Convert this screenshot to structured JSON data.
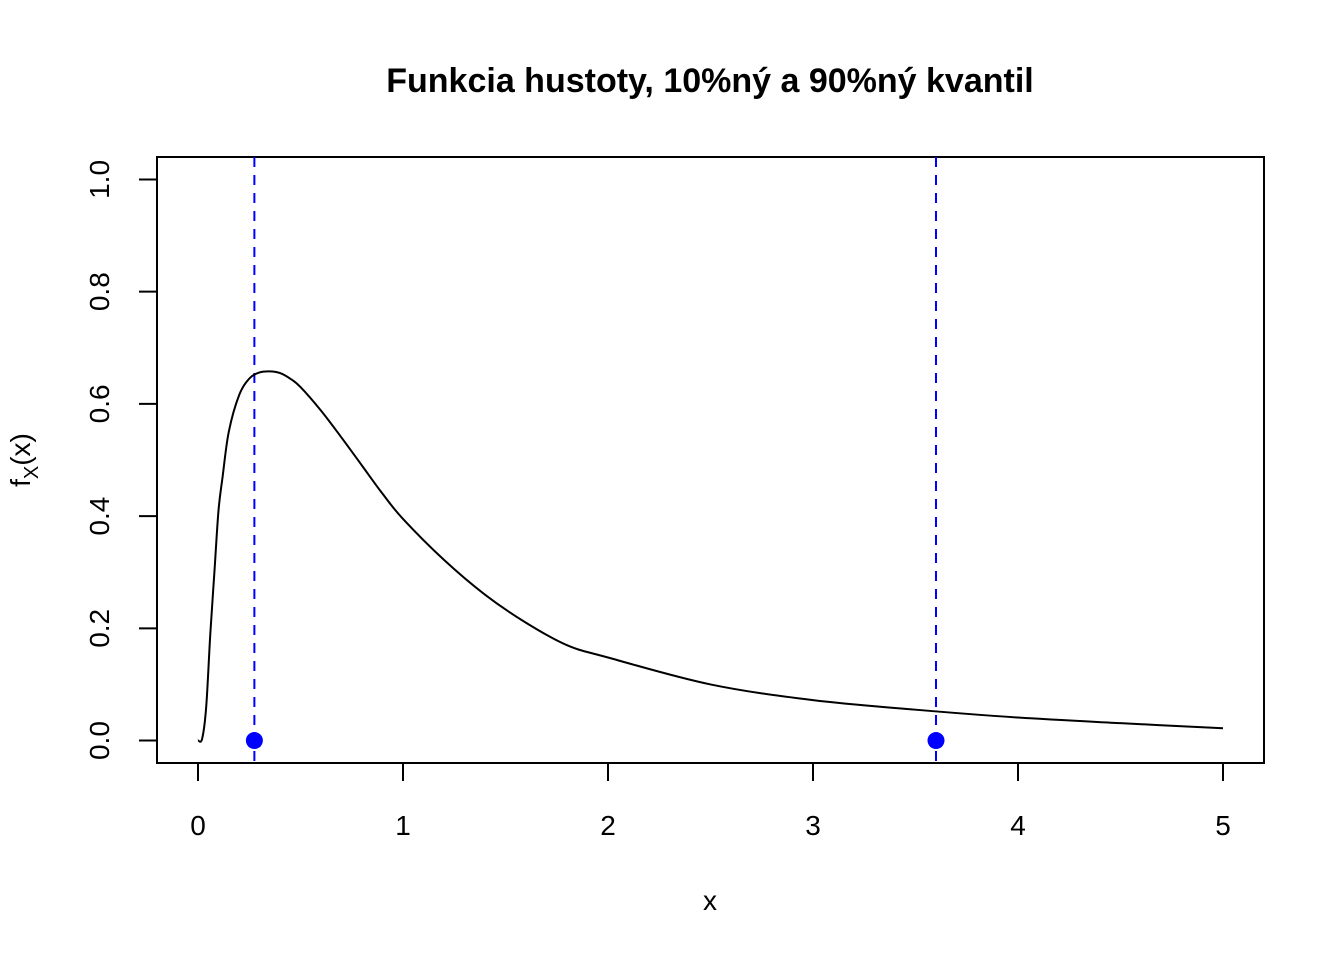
{
  "chart_data": {
    "type": "line",
    "title": "Funkcia hustoty, 10%ný a 90%ný kvantil",
    "xlabel": "x",
    "ylabel_main": "f",
    "ylabel_sub": "X",
    "ylabel_arg": "(x)",
    "xlim": [
      -0.2,
      5.2
    ],
    "ylim": [
      -0.04,
      1.04
    ],
    "xticks": [
      0,
      1,
      2,
      3,
      4,
      5
    ],
    "yticks": [
      0.0,
      0.2,
      0.4,
      0.6,
      0.8,
      1.0
    ],
    "xtick_labels": [
      "0",
      "1",
      "2",
      "3",
      "4",
      "5"
    ],
    "ytick_labels": [
      "0.0",
      "0.2",
      "0.4",
      "0.6",
      "0.8",
      "1.0"
    ],
    "series": [
      {
        "color": "#000000",
        "x": [
          0.0,
          0.02,
          0.04,
          0.06,
          0.08,
          0.1,
          0.12,
          0.15,
          0.2,
          0.25,
          0.3,
          0.35,
          0.4,
          0.45,
          0.5,
          0.6,
          0.7,
          0.8,
          0.9,
          1.0,
          1.2,
          1.4,
          1.6,
          1.8,
          2.0,
          2.5,
          3.0,
          3.5,
          4.0,
          4.5,
          5.0
        ],
        "y": [
          0.0,
          0.003,
          0.06,
          0.19,
          0.3,
          0.41,
          0.47,
          0.55,
          0.615,
          0.645,
          0.656,
          0.658,
          0.655,
          0.645,
          0.63,
          0.588,
          0.54,
          0.49,
          0.44,
          0.395,
          0.322,
          0.26,
          0.21,
          0.17,
          0.148,
          0.1,
          0.072,
          0.055,
          0.041,
          0.031,
          0.022
        ]
      }
    ],
    "quantile_lines": {
      "color": "#0000ff",
      "style": "dashed",
      "x": [
        0.275,
        3.6
      ]
    },
    "quantile_points": {
      "color": "#0000ff",
      "x": [
        0.275,
        3.6
      ],
      "y": [
        0.0,
        0.0
      ]
    },
    "grid": false,
    "legend": "none"
  }
}
